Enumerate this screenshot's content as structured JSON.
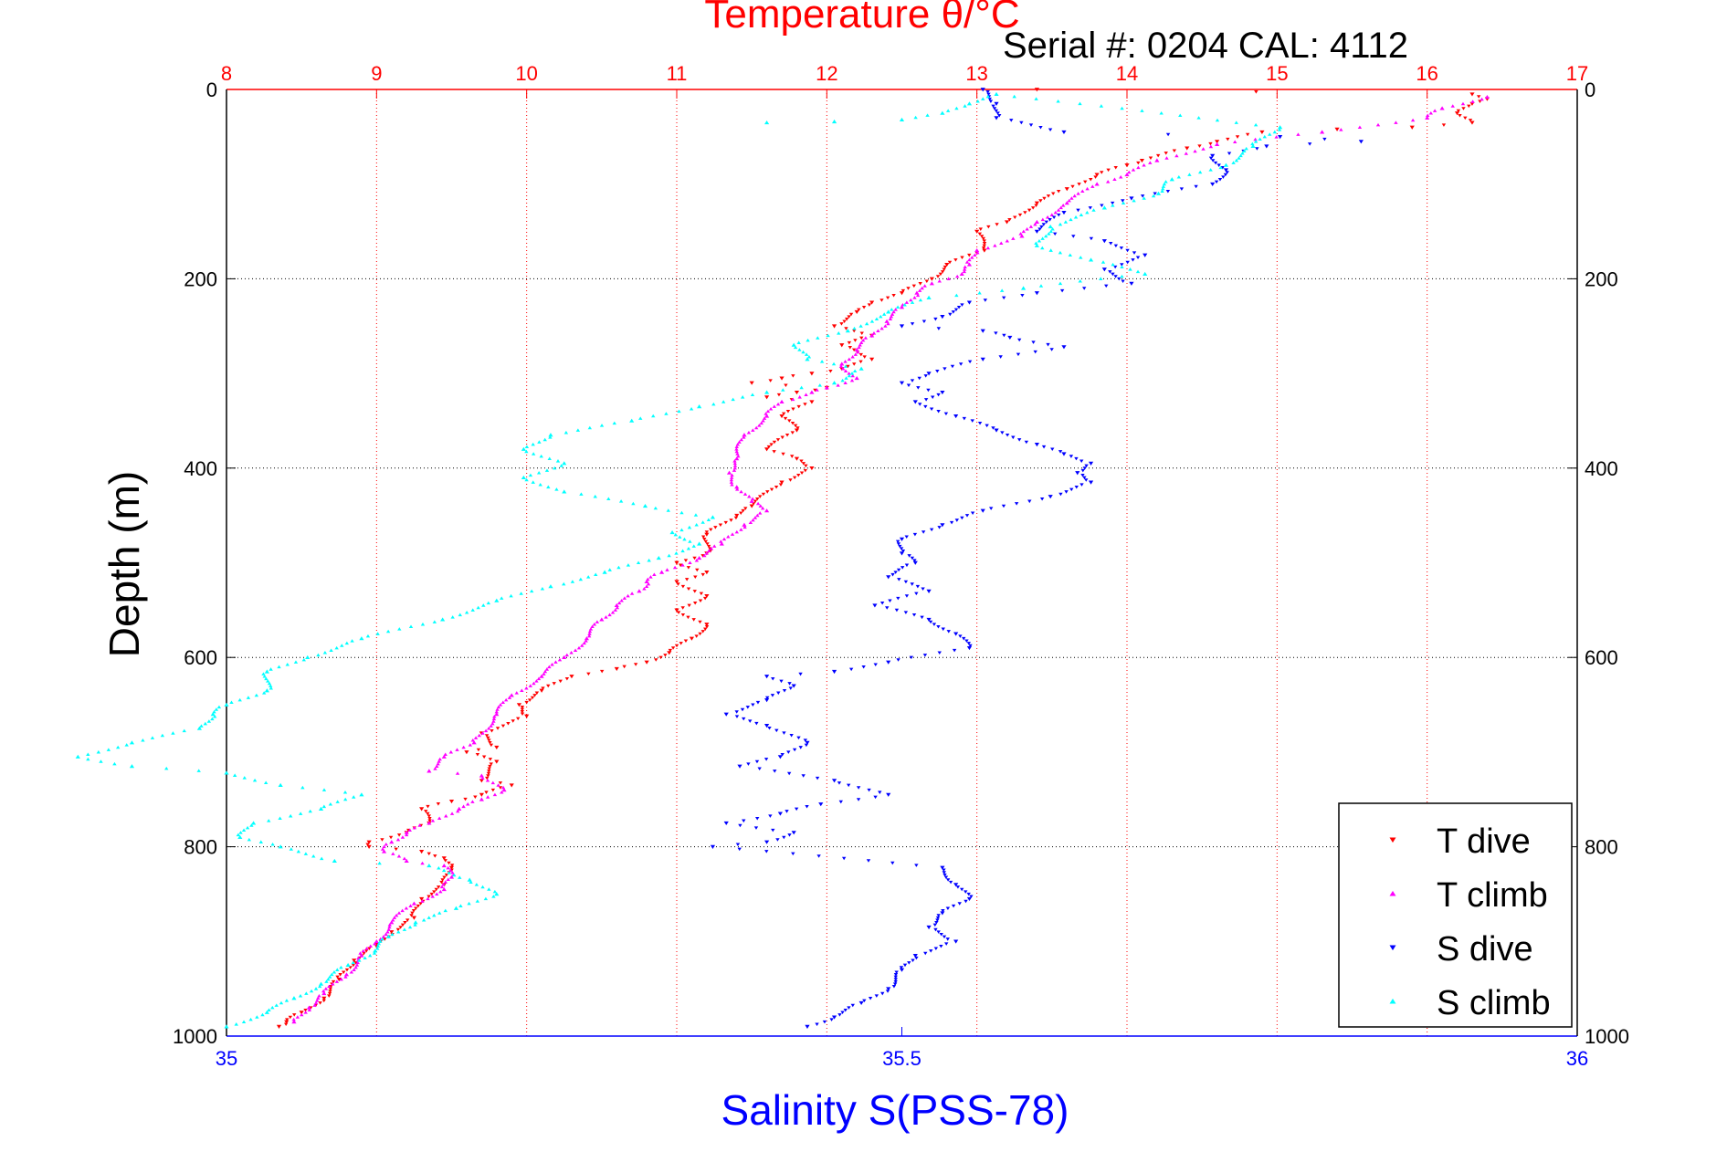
{
  "colors": {
    "temp_axis": "#ff0000",
    "sal_axis": "#0000ff",
    "t_dive": "#ff0000",
    "t_climb": "#ff00ff",
    "s_dive": "#0000ff",
    "s_climb": "#00ffff"
  },
  "chart_data": {
    "type": "scatter",
    "title": "Temperature θ/°C",
    "subtitle": "Serial #: 0204  CAL: 4112",
    "ylabel": "Depth (m)",
    "xlabel": "Salinity S(PSS-78)",
    "ylim": [
      0,
      1000
    ],
    "y_reversed": true,
    "y_ticks": [
      0,
      200,
      400,
      600,
      800,
      1000
    ],
    "temp_axis": {
      "position": "top",
      "range": [
        8,
        17
      ],
      "ticks": [
        8,
        9,
        10,
        11,
        12,
        13,
        14,
        15,
        16,
        17
      ]
    },
    "sal_axis": {
      "position": "bottom",
      "range": [
        35,
        36
      ],
      "ticks": [
        35,
        35.5,
        36
      ]
    },
    "grid": true,
    "legend_position": "bottom-right",
    "series": [
      {
        "name": "T dive",
        "axis": "temp",
        "marker": "triangle-down",
        "color_key": "t_dive",
        "points": [
          [
            13.4,
            0
          ],
          [
            16.3,
            5
          ],
          [
            16.4,
            10
          ],
          [
            16.3,
            15
          ],
          [
            16.2,
            25
          ],
          [
            16.3,
            35
          ],
          [
            15.9,
            40
          ],
          [
            15.4,
            42
          ],
          [
            14.9,
            45
          ],
          [
            14.6,
            55
          ],
          [
            14.4,
            62
          ],
          [
            14.1,
            75
          ],
          [
            14.0,
            80
          ],
          [
            13.8,
            90
          ],
          [
            13.6,
            105
          ],
          [
            13.4,
            120
          ],
          [
            13.2,
            140
          ],
          [
            13.0,
            150
          ],
          [
            13.05,
            170
          ],
          [
            12.8,
            185
          ],
          [
            12.7,
            200
          ],
          [
            12.5,
            215
          ],
          [
            12.3,
            225
          ],
          [
            12.2,
            235
          ],
          [
            12.05,
            250
          ],
          [
            12.3,
            260
          ],
          [
            12.1,
            270
          ],
          [
            12.3,
            285
          ],
          [
            12.1,
            295
          ],
          [
            11.9,
            300
          ],
          [
            11.7,
            305
          ],
          [
            11.5,
            310
          ],
          [
            12.0,
            315
          ],
          [
            11.8,
            320
          ],
          [
            11.6,
            325
          ],
          [
            11.9,
            330
          ],
          [
            11.7,
            345
          ],
          [
            11.8,
            360
          ],
          [
            11.6,
            380
          ],
          [
            11.8,
            390
          ],
          [
            11.9,
            400
          ],
          [
            11.7,
            415
          ],
          [
            11.5,
            440
          ],
          [
            11.4,
            450
          ],
          [
            11.2,
            470
          ],
          [
            11.2,
            490
          ],
          [
            11.0,
            500
          ],
          [
            11.2,
            510
          ],
          [
            11.0,
            520
          ],
          [
            11.2,
            535
          ],
          [
            11.0,
            550
          ],
          [
            11.2,
            565
          ],
          [
            11.1,
            580
          ],
          [
            10.95,
            595
          ],
          [
            10.8,
            605
          ],
          [
            10.6,
            612
          ],
          [
            10.3,
            620
          ],
          [
            10.1,
            635
          ],
          [
            9.95,
            650
          ],
          [
            10.0,
            662
          ],
          [
            9.7,
            680
          ],
          [
            9.8,
            695
          ],
          [
            9.6,
            700
          ],
          [
            9.8,
            710
          ],
          [
            9.7,
            730
          ],
          [
            9.9,
            735
          ],
          [
            9.7,
            745
          ],
          [
            9.5,
            752
          ],
          [
            9.3,
            760
          ],
          [
            9.35,
            775
          ],
          [
            9.2,
            785
          ],
          [
            8.95,
            795
          ],
          [
            8.95,
            800
          ],
          [
            9.3,
            805
          ],
          [
            9.45,
            812
          ],
          [
            9.5,
            822
          ],
          [
            9.45,
            840
          ],
          [
            9.3,
            855
          ],
          [
            9.25,
            875
          ],
          [
            9.1,
            890
          ],
          [
            9.0,
            905
          ],
          [
            8.85,
            920
          ],
          [
            8.75,
            940
          ],
          [
            8.65,
            960
          ],
          [
            8.5,
            975
          ],
          [
            8.4,
            985
          ],
          [
            8.35,
            990
          ]
        ]
      },
      {
        "name": "T climb",
        "axis": "temp",
        "marker": "triangle-up",
        "color_key": "t_climb",
        "points": [
          [
            16.4,
            8
          ],
          [
            16.1,
            20
          ],
          [
            16.0,
            30
          ],
          [
            15.3,
            45
          ],
          [
            14.6,
            58
          ],
          [
            14.2,
            75
          ],
          [
            14.0,
            90
          ],
          [
            13.8,
            100
          ],
          [
            13.6,
            120
          ],
          [
            13.4,
            140
          ],
          [
            13.3,
            155
          ],
          [
            13.0,
            170
          ],
          [
            12.95,
            185
          ],
          [
            12.9,
            195
          ],
          [
            12.7,
            205
          ],
          [
            12.6,
            215
          ],
          [
            12.5,
            230
          ],
          [
            12.4,
            245
          ],
          [
            12.3,
            260
          ],
          [
            12.2,
            275
          ],
          [
            12.1,
            290
          ],
          [
            12.2,
            305
          ],
          [
            12.0,
            315
          ],
          [
            11.9,
            320
          ],
          [
            11.7,
            330
          ],
          [
            11.6,
            345
          ],
          [
            11.45,
            365
          ],
          [
            11.4,
            390
          ],
          [
            11.35,
            405
          ],
          [
            11.4,
            420
          ],
          [
            11.5,
            435
          ],
          [
            11.6,
            445
          ],
          [
            11.45,
            460
          ],
          [
            11.3,
            480
          ],
          [
            11.15,
            495
          ],
          [
            10.9,
            510
          ],
          [
            10.8,
            520
          ],
          [
            10.75,
            530
          ],
          [
            10.6,
            545
          ],
          [
            10.5,
            560
          ],
          [
            10.4,
            580
          ],
          [
            10.25,
            600
          ],
          [
            10.1,
            620
          ],
          [
            9.9,
            640
          ],
          [
            9.8,
            660
          ],
          [
            9.65,
            690
          ],
          [
            9.45,
            705
          ],
          [
            9.35,
            720
          ],
          [
            9.7,
            725
          ],
          [
            9.85,
            740
          ],
          [
            9.7,
            750
          ],
          [
            9.55,
            760
          ],
          [
            9.35,
            775
          ],
          [
            9.2,
            785
          ],
          [
            9.1,
            795
          ],
          [
            9.05,
            805
          ],
          [
            9.2,
            815
          ],
          [
            9.45,
            820
          ],
          [
            9.5,
            832
          ],
          [
            9.45,
            845
          ],
          [
            9.25,
            860
          ],
          [
            9.1,
            880
          ],
          [
            9.0,
            900
          ],
          [
            8.9,
            915
          ],
          [
            8.8,
            935
          ],
          [
            8.65,
            955
          ],
          [
            8.55,
            970
          ],
          [
            8.45,
            985
          ]
        ]
      },
      {
        "name": "S dive",
        "axis": "sal",
        "marker": "triangle-down",
        "color_key": "s_dive",
        "points": [
          [
            35.56,
            0
          ],
          [
            35.57,
            15
          ],
          [
            35.57,
            30
          ],
          [
            35.62,
            45
          ],
          [
            35.78,
            50
          ],
          [
            35.84,
            55
          ],
          [
            35.77,
            60
          ],
          [
            35.73,
            70
          ],
          [
            35.74,
            85
          ],
          [
            35.73,
            100
          ],
          [
            35.67,
            115
          ],
          [
            35.62,
            130
          ],
          [
            35.6,
            150
          ],
          [
            35.65,
            160
          ],
          [
            35.68,
            175
          ],
          [
            35.65,
            190
          ],
          [
            35.67,
            205
          ],
          [
            35.6,
            215
          ],
          [
            35.55,
            225
          ],
          [
            35.53,
            240
          ],
          [
            35.5,
            250
          ],
          [
            35.56,
            255
          ],
          [
            35.58,
            262
          ],
          [
            35.62,
            272
          ],
          [
            35.56,
            285
          ],
          [
            35.52,
            300
          ],
          [
            35.5,
            310
          ],
          [
            35.53,
            320
          ],
          [
            35.51,
            330
          ],
          [
            35.54,
            345
          ],
          [
            35.57,
            360
          ],
          [
            35.6,
            375
          ],
          [
            35.62,
            385
          ],
          [
            35.64,
            395
          ],
          [
            35.63,
            405
          ],
          [
            35.64,
            415
          ],
          [
            35.61,
            430
          ],
          [
            35.56,
            445
          ],
          [
            35.53,
            460
          ],
          [
            35.5,
            475
          ],
          [
            35.5,
            490
          ],
          [
            35.51,
            500
          ],
          [
            35.49,
            515
          ],
          [
            35.52,
            530
          ],
          [
            35.48,
            545
          ],
          [
            35.52,
            560
          ],
          [
            35.54,
            575
          ],
          [
            35.55,
            590
          ],
          [
            35.49,
            605
          ],
          [
            35.45,
            615
          ],
          [
            35.4,
            620
          ],
          [
            35.42,
            630
          ],
          [
            35.4,
            645
          ],
          [
            35.37,
            660
          ],
          [
            35.4,
            672
          ],
          [
            35.43,
            690
          ],
          [
            35.41,
            705
          ],
          [
            35.38,
            715
          ],
          [
            35.45,
            730
          ],
          [
            35.49,
            745
          ],
          [
            35.44,
            755
          ],
          [
            35.41,
            765
          ],
          [
            35.37,
            775
          ],
          [
            35.42,
            785
          ],
          [
            35.4,
            795
          ],
          [
            35.36,
            800
          ],
          [
            35.53,
            822
          ],
          [
            35.54,
            840
          ],
          [
            35.55,
            855
          ],
          [
            35.53,
            870
          ],
          [
            35.52,
            885
          ],
          [
            35.54,
            900
          ],
          [
            35.51,
            915
          ],
          [
            35.5,
            930
          ],
          [
            35.49,
            950
          ],
          [
            35.47,
            965
          ],
          [
            35.45,
            980
          ],
          [
            35.43,
            990
          ]
        ]
      },
      {
        "name": "S climb",
        "axis": "sal",
        "marker": "triangle-up",
        "color_key": "s_climb",
        "points": [
          [
            35.4,
            35
          ],
          [
            35.45,
            34
          ],
          [
            35.5,
            32
          ],
          [
            35.53,
            25
          ],
          [
            35.55,
            15
          ],
          [
            35.57,
            5
          ],
          [
            35.78,
            40
          ],
          [
            35.76,
            60
          ],
          [
            35.74,
            80
          ],
          [
            35.7,
            95
          ],
          [
            35.69,
            110
          ],
          [
            35.65,
            125
          ],
          [
            35.61,
            145
          ],
          [
            35.6,
            165
          ],
          [
            35.64,
            180
          ],
          [
            35.68,
            195
          ],
          [
            35.59,
            210
          ],
          [
            35.52,
            220
          ],
          [
            35.49,
            235
          ],
          [
            35.46,
            255
          ],
          [
            35.42,
            270
          ],
          [
            35.43,
            285
          ],
          [
            35.47,
            295
          ],
          [
            35.45,
            310
          ],
          [
            35.4,
            320
          ],
          [
            35.35,
            335
          ],
          [
            35.3,
            350
          ],
          [
            35.24,
            365
          ],
          [
            35.22,
            380
          ],
          [
            35.25,
            395
          ],
          [
            35.22,
            410
          ],
          [
            35.25,
            425
          ],
          [
            35.31,
            440
          ],
          [
            35.36,
            452
          ],
          [
            35.33,
            468
          ],
          [
            35.35,
            480
          ],
          [
            35.32,
            495
          ],
          [
            35.28,
            510
          ],
          [
            35.24,
            525
          ],
          [
            35.2,
            540
          ],
          [
            35.16,
            560
          ],
          [
            35.1,
            580
          ],
          [
            35.06,
            600
          ],
          [
            35.03,
            615
          ],
          [
            35.03,
            635
          ],
          [
            35.0,
            650
          ],
          [
            34.99,
            660
          ],
          [
            34.98,
            675
          ],
          [
            34.93,
            690
          ],
          [
            34.89,
            705
          ],
          [
            34.93,
            715
          ],
          [
            35.0,
            722
          ],
          [
            35.04,
            735
          ],
          [
            35.1,
            745
          ],
          [
            35.07,
            760
          ],
          [
            35.02,
            775
          ],
          [
            35.01,
            790
          ],
          [
            35.04,
            800
          ],
          [
            35.08,
            815
          ],
          [
            35.15,
            820
          ],
          [
            35.18,
            835
          ],
          [
            35.2,
            850
          ],
          [
            35.17,
            865
          ],
          [
            35.14,
            880
          ],
          [
            35.12,
            895
          ],
          [
            35.11,
            910
          ],
          [
            35.09,
            925
          ],
          [
            35.07,
            945
          ],
          [
            35.05,
            960
          ],
          [
            35.03,
            975
          ],
          [
            35.0,
            990
          ]
        ]
      }
    ]
  }
}
